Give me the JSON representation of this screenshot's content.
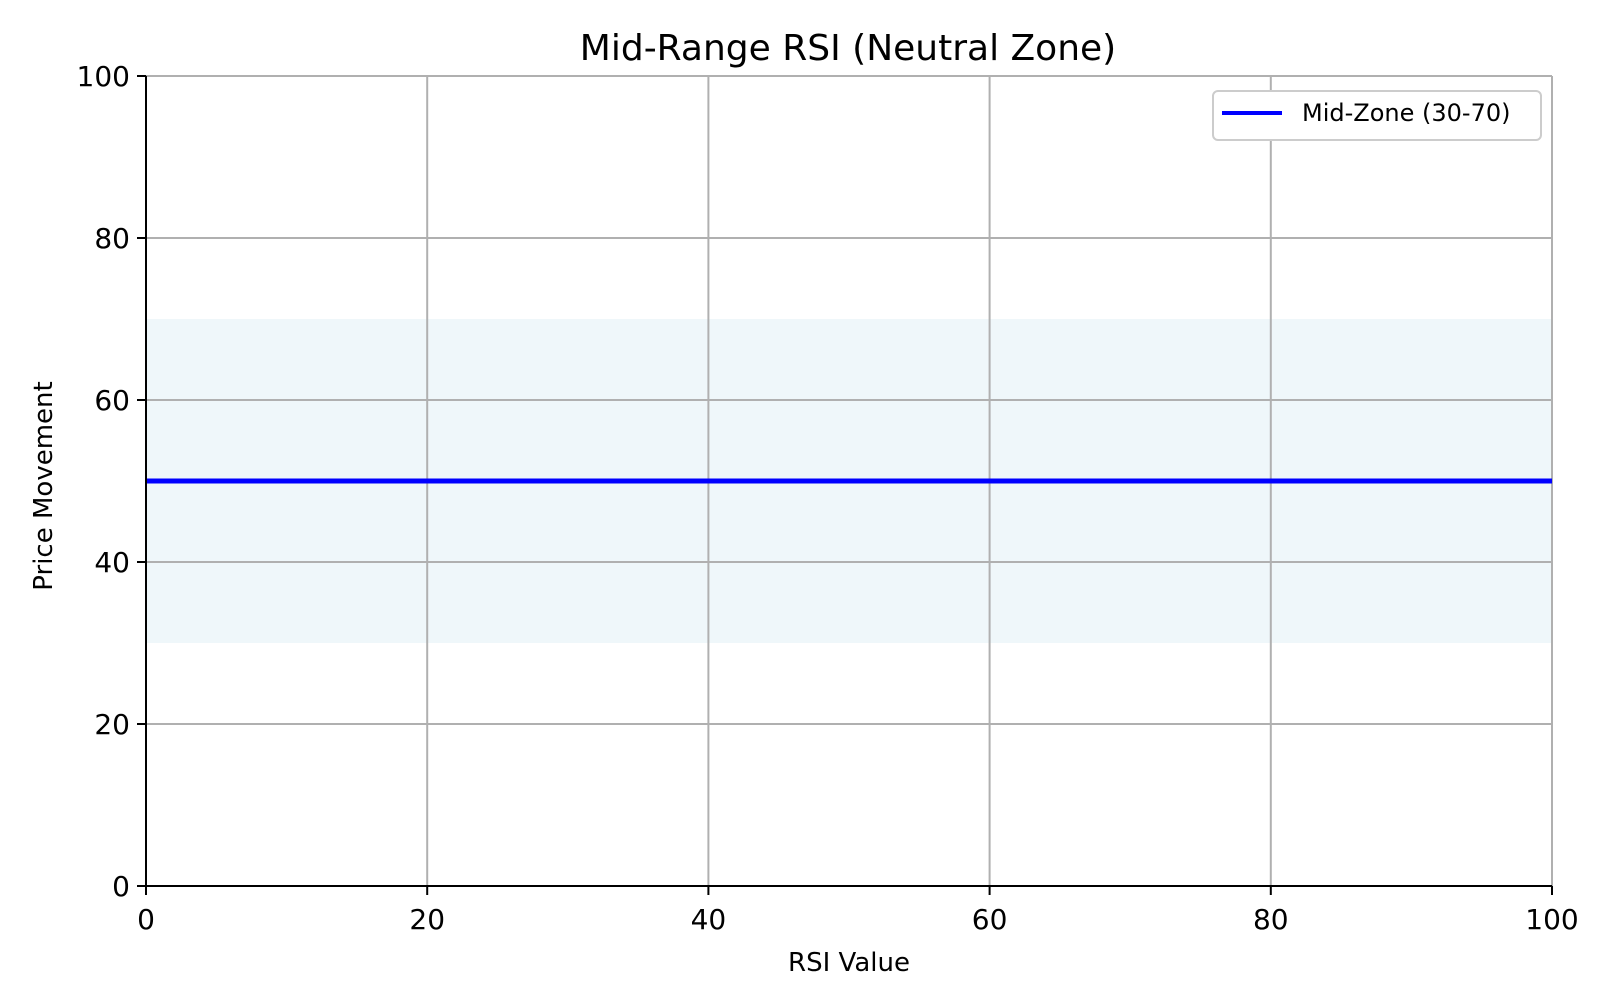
{
  "chart_data": {
    "type": "line",
    "title": "Mid-Range RSI (Neutral Zone)",
    "xlabel": "RSI Value",
    "ylabel": "Price Movement",
    "xlim": [
      0,
      100
    ],
    "ylim": [
      0,
      100
    ],
    "xticks": [
      0,
      20,
      40,
      60,
      80,
      100
    ],
    "yticks": [
      0,
      20,
      40,
      60,
      80,
      100
    ],
    "xtick_labels": [
      "0",
      "20",
      "40",
      "60",
      "80",
      "100"
    ],
    "ytick_labels": [
      "0",
      "20",
      "40",
      "60",
      "80",
      "100"
    ],
    "grid": true,
    "legend_position": "top-right",
    "series": [
      {
        "name": "Mid-Zone (30-70)",
        "x": [
          0,
          100
        ],
        "y": [
          50,
          50
        ],
        "color": "#0000ff"
      }
    ],
    "band": {
      "y_from": 30,
      "y_to": 70,
      "color": "#add8e6"
    }
  }
}
